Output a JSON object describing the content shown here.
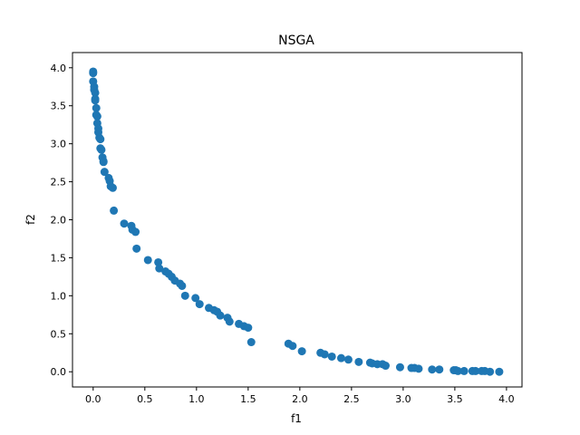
{
  "chart_data": {
    "type": "scatter",
    "title": "NSGA",
    "xlabel": "f1",
    "ylabel": "f2",
    "xlim": [
      -0.2,
      4.15
    ],
    "ylim": [
      -0.2,
      4.2
    ],
    "xticks": [
      0.0,
      0.5,
      1.0,
      1.5,
      2.0,
      2.5,
      3.0,
      3.5,
      4.0
    ],
    "xtick_labels": [
      "0.0",
      "0.5",
      "1.0",
      "1.5",
      "2.0",
      "2.5",
      "3.0",
      "3.5",
      "4.0"
    ],
    "yticks": [
      0.0,
      0.5,
      1.0,
      1.5,
      2.0,
      2.5,
      3.0,
      3.5,
      4.0
    ],
    "ytick_labels": [
      "0.0",
      "0.5",
      "1.0",
      "1.5",
      "2.0",
      "2.5",
      "3.0",
      "3.5",
      "4.0"
    ],
    "grid": false,
    "marker_color": "#1f77b4",
    "series": [
      {
        "x": [
          0.0,
          0.0,
          0.0,
          0.01,
          0.01,
          0.02,
          0.02,
          0.02,
          0.03,
          0.03,
          0.04,
          0.04,
          0.05,
          0.05,
          0.06,
          0.07,
          0.07,
          0.08,
          0.09,
          0.1,
          0.1,
          0.11,
          0.15,
          0.16,
          0.17,
          0.19,
          0.2,
          0.3,
          0.37,
          0.38,
          0.41,
          0.42,
          0.53,
          0.63,
          0.64,
          0.7,
          0.73,
          0.76,
          0.79,
          0.84,
          0.86,
          0.89,
          0.99,
          1.03,
          1.12,
          1.17,
          1.2,
          1.23,
          1.3,
          1.32,
          1.41,
          1.46,
          1.5,
          1.53,
          1.89,
          1.93,
          2.02,
          2.2,
          2.24,
          2.31,
          2.4,
          2.47,
          2.57,
          2.68,
          2.7,
          2.75,
          2.8,
          2.83,
          2.97,
          3.08,
          3.11,
          3.15,
          3.28,
          3.35,
          3.49,
          3.51,
          3.53,
          3.59,
          3.67,
          3.7,
          3.76,
          3.79,
          3.84,
          3.93
        ],
        "y": [
          3.95,
          3.93,
          3.82,
          3.75,
          3.71,
          3.67,
          3.59,
          3.57,
          3.47,
          3.38,
          3.36,
          3.27,
          3.2,
          3.15,
          3.08,
          3.06,
          2.94,
          2.92,
          2.82,
          2.77,
          2.76,
          2.63,
          2.55,
          2.51,
          2.44,
          2.42,
          2.12,
          1.95,
          1.92,
          1.87,
          1.84,
          1.62,
          1.47,
          1.44,
          1.36,
          1.32,
          1.29,
          1.25,
          1.2,
          1.16,
          1.13,
          1.0,
          0.97,
          0.89,
          0.84,
          0.81,
          0.79,
          0.74,
          0.71,
          0.66,
          0.63,
          0.6,
          0.58,
          0.39,
          0.37,
          0.34,
          0.27,
          0.25,
          0.23,
          0.2,
          0.18,
          0.16,
          0.13,
          0.12,
          0.11,
          0.1,
          0.1,
          0.08,
          0.06,
          0.05,
          0.05,
          0.04,
          0.03,
          0.03,
          0.02,
          0.02,
          0.01,
          0.01,
          0.01,
          0.01,
          0.01,
          0.01,
          0.0,
          0.0
        ]
      }
    ]
  }
}
